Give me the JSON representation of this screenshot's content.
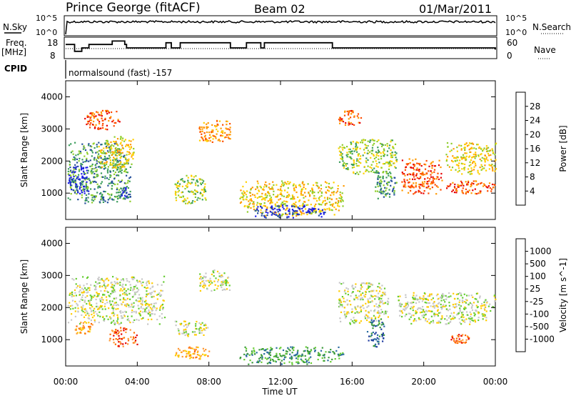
{
  "header": {
    "title": "Prince George (fitACF)",
    "beam": "Beam 02",
    "date": "01/Mar/2011"
  },
  "summary_panel": {
    "nsky_label": "N.Sky",
    "nsky_ticks": [
      "10^5",
      "10^0"
    ],
    "nsearch_label": "N.Search",
    "nsearch_ticks": [
      "10^5",
      "10^0"
    ],
    "freq_label_1": "Freq.",
    "freq_label_2": "[MHz]",
    "freq_ticks": [
      "18",
      "8"
    ],
    "nave_label": "Nave",
    "nave_ticks": [
      "60",
      "0"
    ],
    "cpid_label": "CPID",
    "cpid_text": "normalsound (fast) -157"
  },
  "chart_data": [
    {
      "type": "heatmap",
      "title": "",
      "xlabel": "Time UT",
      "ylabel": "Slant Range [km]",
      "x_ticks": [
        "00:00",
        "04:00",
        "08:00",
        "12:00",
        "16:00",
        "20:00",
        "00:00"
      ],
      "xlim_hours": [
        0,
        24
      ],
      "ylim_km": [
        180,
        4500
      ],
      "y_ticks": [
        1000,
        2000,
        3000,
        4000
      ],
      "colorbar_label": "Power [dB]",
      "colorbar_ticks": [
        "28",
        "24",
        "20",
        "16",
        "12",
        "8",
        "4"
      ],
      "colorbar_colors": [
        "#e60000",
        "#ff4d00",
        "#ff9900",
        "#ffd000",
        "#8fce2a",
        "#3b9d5b",
        "#25509a",
        "#1e1ee6"
      ],
      "regions": [
        {
          "t0": 0.1,
          "t1": 3.6,
          "r0": 700,
          "r1": 2600,
          "level": 5
        },
        {
          "t0": 0.1,
          "t1": 1.3,
          "r0": 1000,
          "r1": 1900,
          "level": 7
        },
        {
          "t0": 2.9,
          "t1": 3.6,
          "r0": 800,
          "r1": 1200,
          "level": 6
        },
        {
          "t0": 1.7,
          "t1": 3.8,
          "r0": 1800,
          "r1": 2800,
          "level": 3
        },
        {
          "t0": 1.0,
          "t1": 3.0,
          "r0": 3000,
          "r1": 3600,
          "level": 1
        },
        {
          "t0": 6.0,
          "t1": 7.8,
          "r0": 700,
          "r1": 1600,
          "level": 4
        },
        {
          "t0": 7.4,
          "t1": 9.2,
          "r0": 2600,
          "r1": 3300,
          "level": 2
        },
        {
          "t0": 9.7,
          "t1": 15.5,
          "r0": 300,
          "r1": 1400,
          "level": 3
        },
        {
          "t0": 10.5,
          "t1": 14.5,
          "r0": 250,
          "r1": 650,
          "level": 7
        },
        {
          "t0": 15.2,
          "t1": 18.5,
          "r0": 1600,
          "r1": 2700,
          "level": 4
        },
        {
          "t0": 17.2,
          "t1": 18.5,
          "r0": 800,
          "r1": 1700,
          "level": 5
        },
        {
          "t0": 15.2,
          "t1": 16.5,
          "r0": 3100,
          "r1": 3600,
          "level": 1
        },
        {
          "t0": 18.7,
          "t1": 21.0,
          "r0": 1000,
          "r1": 2100,
          "level": 1
        },
        {
          "t0": 21.2,
          "t1": 24.0,
          "r0": 1600,
          "r1": 2600,
          "level": 3
        },
        {
          "t0": 21.2,
          "t1": 24.0,
          "r0": 1000,
          "r1": 1400,
          "level": 1
        }
      ]
    },
    {
      "type": "heatmap",
      "title": "",
      "xlabel": "Time UT",
      "ylabel": "Slant Range [km]",
      "x_ticks": [
        "00:00",
        "04:00",
        "08:00",
        "12:00",
        "16:00",
        "20:00",
        "00:00"
      ],
      "xlim_hours": [
        0,
        24
      ],
      "ylim_km": [
        180,
        4500
      ],
      "y_ticks": [
        1000,
        2000,
        3000,
        4000
      ],
      "colorbar_label": "Velocity [m s^-1]",
      "colorbar_ticks": [
        "1000",
        "500",
        "100",
        "25",
        "-25",
        "-100",
        "-500",
        "-1000"
      ],
      "colorbar_colors": [
        "#1e3ba0",
        "#2a6ba0",
        "#3a9a3a",
        "#66cc33",
        "#c8c8c8",
        "#ffcc00",
        "#ff9933",
        "#ff6a00",
        "#e60000"
      ],
      "regions": [
        {
          "t0": 0.1,
          "t1": 5.5,
          "r0": 1500,
          "r1": 3000,
          "level": 4
        },
        {
          "t0": 2.4,
          "t1": 4.0,
          "r0": 800,
          "r1": 1400,
          "level": 7
        },
        {
          "t0": 0.5,
          "t1": 1.5,
          "r0": 1200,
          "r1": 1600,
          "level": 6
        },
        {
          "t0": 6.0,
          "t1": 8.0,
          "r0": 400,
          "r1": 800,
          "level": 6
        },
        {
          "t0": 6.0,
          "t1": 8.0,
          "r0": 1100,
          "r1": 1600,
          "level": 4
        },
        {
          "t0": 7.4,
          "t1": 9.2,
          "r0": 2500,
          "r1": 3200,
          "level": 4
        },
        {
          "t0": 9.7,
          "t1": 15.5,
          "r0": 250,
          "r1": 800,
          "level": 2
        },
        {
          "t0": 15.2,
          "t1": 18.0,
          "r0": 1500,
          "r1": 2800,
          "level": 4
        },
        {
          "t0": 16.8,
          "t1": 17.8,
          "r0": 800,
          "r1": 1700,
          "level": 1
        },
        {
          "t0": 18.5,
          "t1": 24.0,
          "r0": 1500,
          "r1": 2500,
          "level": 4
        },
        {
          "t0": 21.5,
          "t1": 22.5,
          "r0": 900,
          "r1": 1200,
          "level": 7
        }
      ]
    }
  ]
}
